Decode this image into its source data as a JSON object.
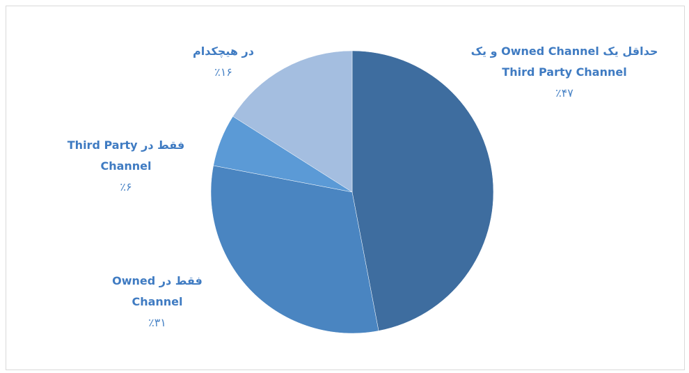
{
  "chart_data": {
    "type": "pie",
    "categories": [
      "حداقل یک Owned Channel و یک Third Party Channel",
      "فقط در Owned Channel",
      "فقط در Third Party Channel",
      "در هیچکدام"
    ],
    "values": [
      47,
      31,
      6,
      16
    ],
    "value_labels": [
      "٪۴۷",
      "٪۳۱",
      "٪۶",
      "٪۱۶"
    ],
    "colors": [
      "#3e6d9f",
      "#4a85c1",
      "#5b9ad6",
      "#a4bee0"
    ]
  }
}
